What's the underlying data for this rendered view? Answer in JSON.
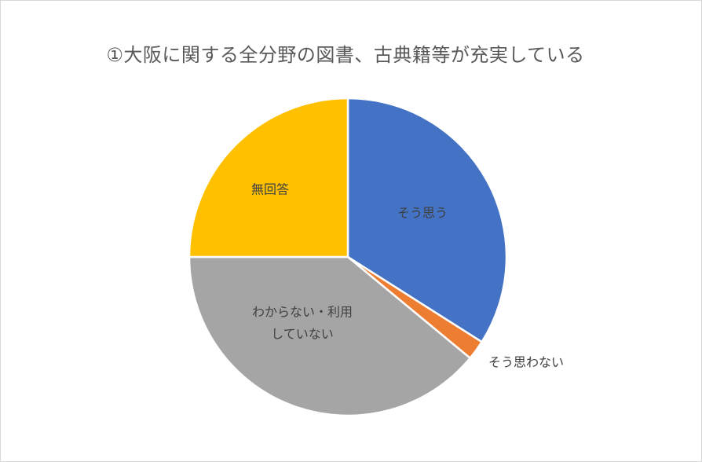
{
  "chart_data": {
    "type": "pie",
    "title": "①大阪に関する全分野の図書、古典籍等が充実している",
    "slices": [
      {
        "label": "そう思う",
        "value": 34,
        "color": "#4472c4",
        "label_lines": [
          "そう思う"
        ]
      },
      {
        "label": "そう思わない",
        "value": 2,
        "color": "#ed7d31",
        "label_lines": [
          "そう思わない"
        ]
      },
      {
        "label": "わからない・利用していない",
        "value": 39,
        "color": "#a5a5a5",
        "label_lines": [
          "わからない・利用",
          "していない"
        ]
      },
      {
        "label": "無回答",
        "value": 25,
        "color": "#ffc000",
        "label_lines": [
          "無回答"
        ]
      }
    ],
    "legend": "none"
  }
}
